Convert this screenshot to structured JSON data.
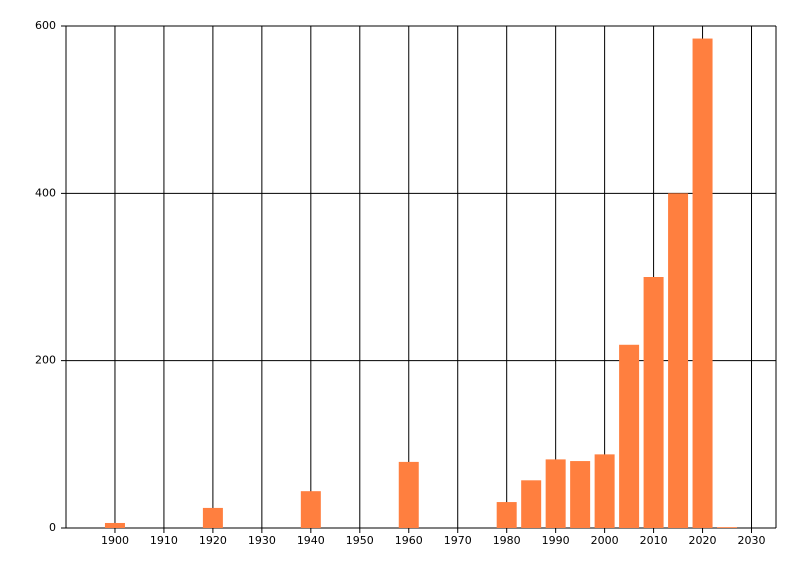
{
  "chart_data": {
    "type": "bar",
    "x": [
      1900,
      1920,
      1940,
      1960,
      1980,
      1985,
      1990,
      1995,
      2000,
      2005,
      2010,
      2015,
      2020,
      2025
    ],
    "values": [
      6,
      24,
      44,
      79,
      31,
      57,
      82,
      80,
      88,
      219,
      300,
      400,
      585,
      1
    ],
    "color": "#ff7f3f",
    "xlim": [
      1890,
      2035
    ],
    "xticks": [
      1900,
      1910,
      1920,
      1930,
      1940,
      1950,
      1960,
      1970,
      1980,
      1990,
      2000,
      2010,
      2020,
      2030
    ],
    "ylim": [
      0,
      600
    ],
    "yticks": [
      0,
      200,
      400,
      600
    ],
    "grid": true
  }
}
